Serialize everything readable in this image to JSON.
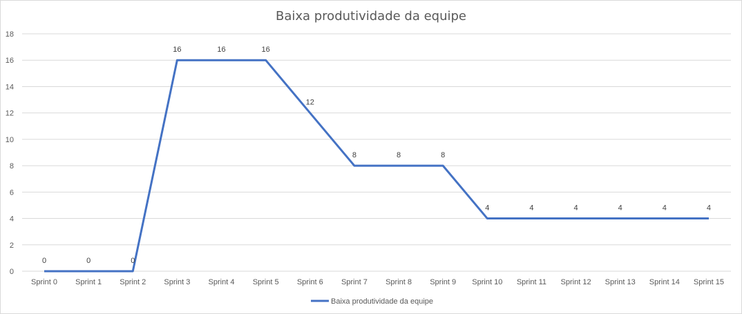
{
  "chart_data": {
    "type": "line",
    "title": "Baixa produtividade da equipe",
    "categories": [
      "Sprint 0",
      "Sprint 1",
      "Sprint 2",
      "Sprint 3",
      "Sprint 4",
      "Sprint 5",
      "Sprint 6",
      "Sprint 7",
      "Sprint 8",
      "Sprint 9",
      "Sprint 10",
      "Sprint 11",
      "Sprint 12",
      "Sprint 13",
      "Sprint 14",
      "Sprint 15"
    ],
    "series": [
      {
        "name": "Baixa produtividade da equipe",
        "values": [
          0,
          0,
          0,
          16,
          16,
          16,
          12,
          8,
          8,
          8,
          4,
          4,
          4,
          4,
          4,
          4
        ],
        "color": "#4472c4"
      }
    ],
    "ylim": [
      0,
      18
    ],
    "yticks": [
      0,
      2,
      4,
      6,
      8,
      10,
      12,
      14,
      16,
      18
    ],
    "grid": true,
    "data_labels": true,
    "legend": "bottom"
  }
}
